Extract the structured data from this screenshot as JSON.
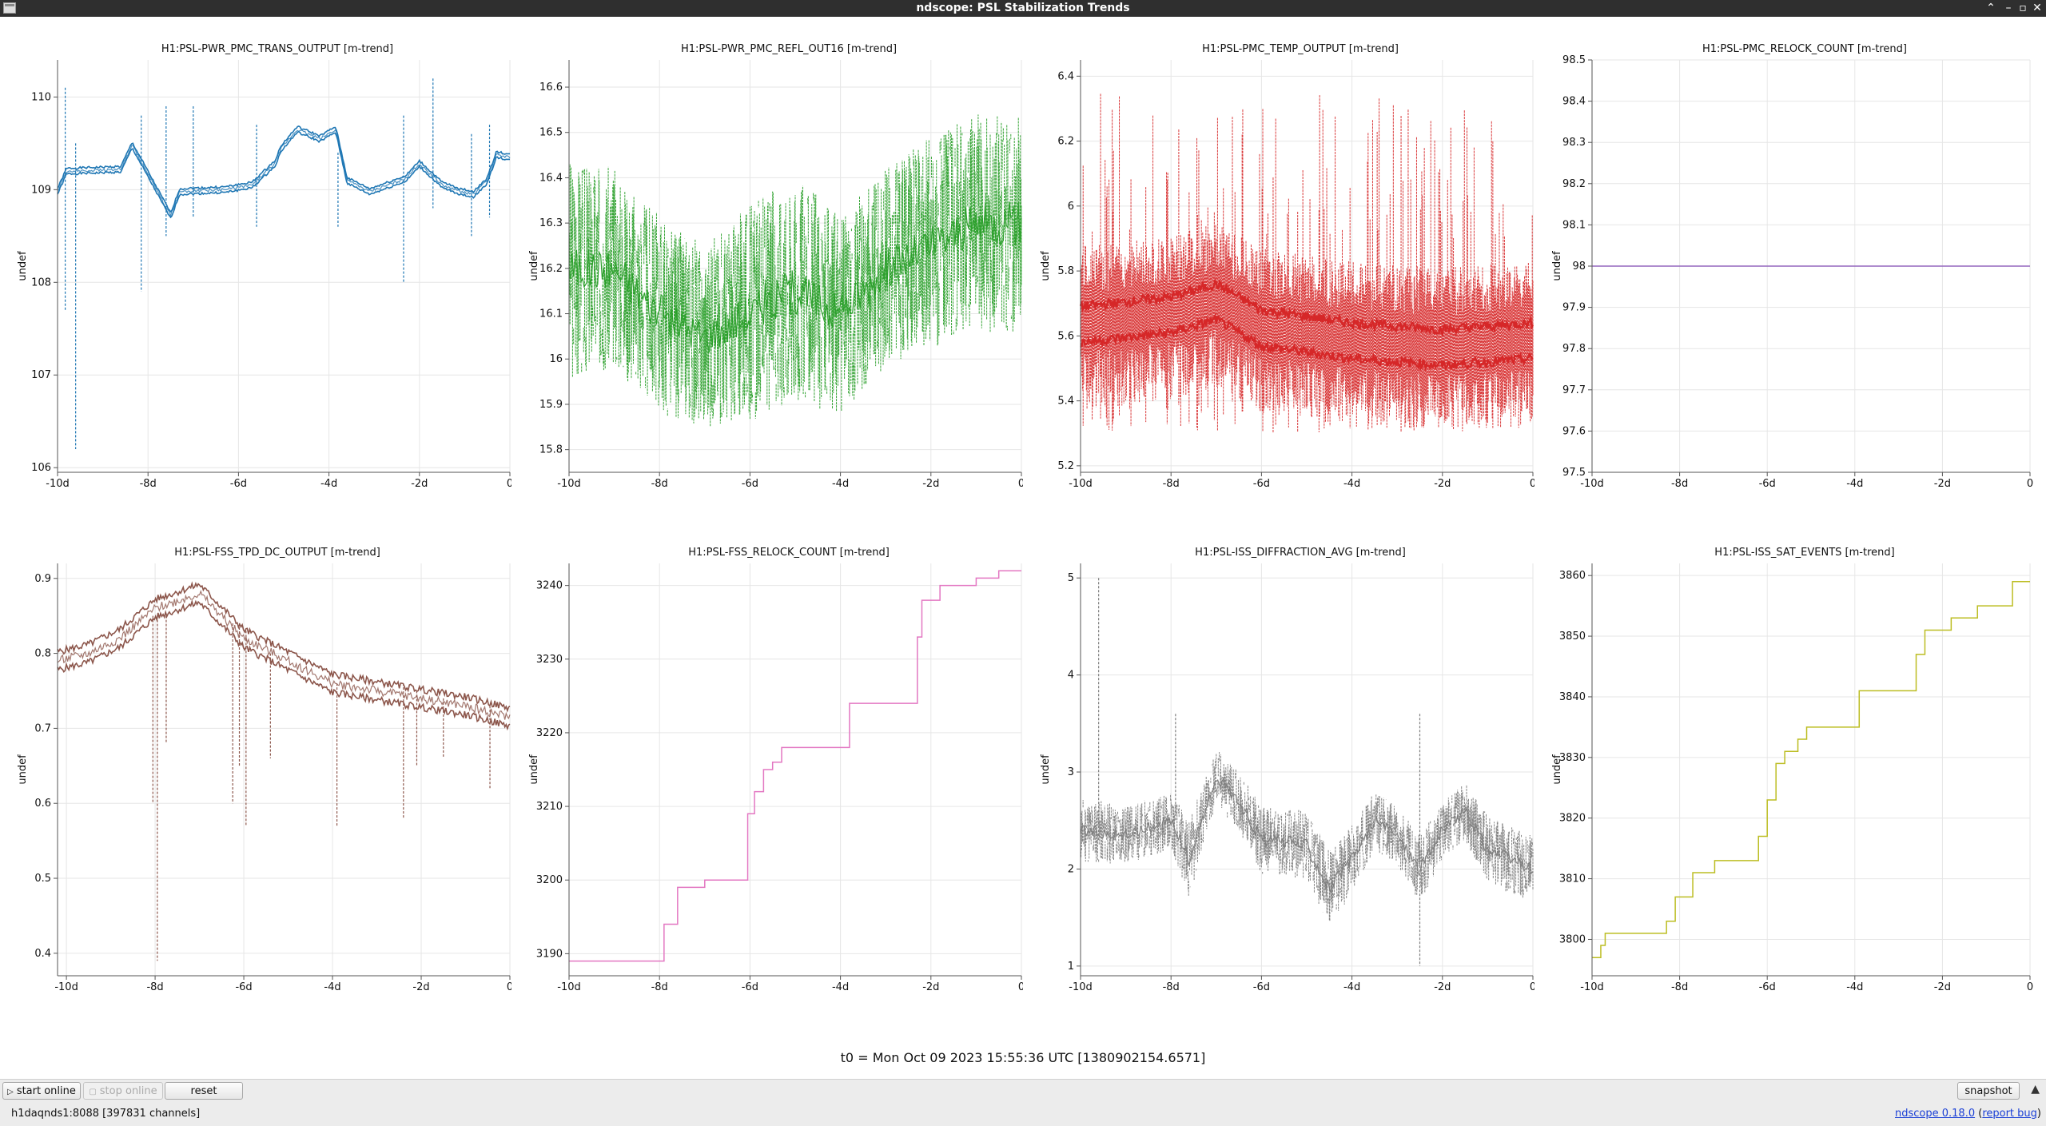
{
  "window": {
    "title": "ndscope: PSL Stabilization Trends"
  },
  "t0_label": "t0 = Mon Oct 09 2023 15:55:36 UTC [1380902154.6571]",
  "buttons": {
    "start_online": "start online",
    "stop_online": "stop online",
    "reset": "reset",
    "snapshot": "snapshot"
  },
  "status": {
    "server": "h1daqnds1:8088  [397831 channels]",
    "version": "ndscope 0.18.0",
    "report_bug": "report bug"
  },
  "chart_data": [
    {
      "type": "line",
      "title": "H1:PSL-PWR_PMC_TRANS_OUTPUT [m-trend]",
      "ylabel": "undef",
      "color": "#1f77b4",
      "xlim": [
        -10,
        0
      ],
      "ylim": [
        105.95,
        110.4
      ],
      "yticks": [
        106,
        107,
        108,
        109,
        110
      ],
      "yticklabels": [
        "106",
        "107",
        "108",
        "109",
        "110"
      ],
      "xticks": [
        -10,
        -8,
        -6,
        -4,
        -2,
        0
      ],
      "xticklabels": [
        "-10d",
        "-8d",
        "-6d",
        "-4d",
        "-2d",
        "0"
      ],
      "style": "steps",
      "band": 0.03,
      "x": [
        -10,
        -9.8,
        -8.6,
        -8.35,
        -7.5,
        -7.3,
        -6.3,
        -5.7,
        -5.2,
        -5.05,
        -4.7,
        -4.2,
        -3.85,
        -3.6,
        -3.1,
        -2.3,
        -2.0,
        -1.5,
        -1.1,
        -0.8,
        -0.5,
        -0.3,
        0
      ],
      "y": [
        108.98,
        109.2,
        109.22,
        109.48,
        108.72,
        108.98,
        109.0,
        109.05,
        109.28,
        109.45,
        109.65,
        109.55,
        109.65,
        109.1,
        108.98,
        109.12,
        109.28,
        109.05,
        108.98,
        108.95,
        109.1,
        109.38,
        109.35
      ],
      "spikes": [
        [
          -9.83,
          110.1,
          107.7
        ],
        [
          -9.6,
          109.5,
          106.2
        ],
        [
          -8.15,
          109.8,
          107.9
        ],
        [
          -7.6,
          109.9,
          108.5
        ],
        [
          -7.0,
          109.9,
          108.7
        ],
        [
          -5.6,
          109.7,
          108.6
        ],
        [
          -3.8,
          109.4,
          108.6
        ],
        [
          -2.35,
          109.8,
          108.0
        ],
        [
          -1.7,
          110.2,
          108.8
        ],
        [
          -0.85,
          109.6,
          108.5
        ],
        [
          -0.45,
          109.7,
          108.7
        ]
      ]
    },
    {
      "type": "line",
      "title": "H1:PSL-PWR_PMC_REFL_OUT16 [m-trend]",
      "ylabel": "undef",
      "color": "#2ca02c",
      "xlim": [
        -10,
        0
      ],
      "ylim": [
        15.75,
        16.66
      ],
      "yticks": [
        15.8,
        15.9,
        16,
        16.1,
        16.2,
        16.3,
        16.4,
        16.5,
        16.6
      ],
      "yticklabels": [
        "15.8",
        "15.9",
        "16",
        "16.1",
        "16.2",
        "16.3",
        "16.4",
        "16.5",
        "16.6"
      ],
      "xticks": [
        -10,
        -8,
        -6,
        -4,
        -2,
        0
      ],
      "xticklabels": [
        "-10d",
        "-8d",
        "-6d",
        "-4d",
        "-2d",
        "0"
      ],
      "style": "noise",
      "seed": 3,
      "x": [
        -10,
        -9,
        -8,
        -7,
        -6,
        -5,
        -4,
        -3,
        -2,
        -1,
        0
      ],
      "y": [
        16.2,
        16.2,
        16.1,
        16.05,
        16.1,
        16.15,
        16.1,
        16.2,
        16.25,
        16.3,
        16.3
      ],
      "amp": [
        0.25,
        0.22,
        0.22,
        0.2,
        0.24,
        0.25,
        0.22,
        0.22,
        0.24,
        0.24,
        0.24
      ]
    },
    {
      "type": "line",
      "title": "H1:PSL-PMC_TEMP_OUTPUT [m-trend]",
      "ylabel": "undef",
      "color": "#d62728",
      "xlim": [
        -10,
        0
      ],
      "ylim": [
        5.18,
        6.45
      ],
      "yticks": [
        5.2,
        5.4,
        5.6,
        5.8,
        6,
        6.2,
        6.4
      ],
      "yticklabels": [
        "5.2",
        "5.4",
        "5.6",
        "5.8",
        "6",
        "6.2",
        "6.4"
      ],
      "xticks": [
        -10,
        -8,
        -6,
        -4,
        -2,
        0
      ],
      "xticklabels": [
        "-10d",
        "-8d",
        "-6d",
        "-4d",
        "-2d",
        "0"
      ],
      "style": "temp",
      "seed": 7,
      "x": [
        -10,
        -8,
        -7,
        -6,
        -4,
        -2,
        0
      ],
      "y": [
        5.65,
        5.68,
        5.72,
        5.64,
        5.6,
        5.58,
        5.6
      ]
    },
    {
      "type": "line",
      "title": "H1:PSL-PMC_RELOCK_COUNT [m-trend]",
      "ylabel": "undef",
      "color": "#9467bd",
      "xlim": [
        -10,
        0
      ],
      "ylim": [
        97.5,
        98.5
      ],
      "yticks": [
        97.5,
        97.6,
        97.7,
        97.8,
        97.9,
        98,
        98.1,
        98.2,
        98.3,
        98.4,
        98.5
      ],
      "yticklabels": [
        "97.5",
        "97.6",
        "97.7",
        "97.8",
        "97.9",
        "98",
        "98.1",
        "98.2",
        "98.3",
        "98.4",
        "98.5"
      ],
      "xticks": [
        -10,
        -8,
        -6,
        -4,
        -2,
        0
      ],
      "xticklabels": [
        "-10d",
        "-8d",
        "-6d",
        "-4d",
        "-2d",
        "0"
      ],
      "style": "steps",
      "band": 0,
      "x": [
        -10,
        0
      ],
      "y": [
        98,
        98
      ]
    },
    {
      "type": "line",
      "title": "H1:PSL-FSS_TPD_DC_OUTPUT [m-trend]",
      "ylabel": "undef",
      "color": "#8c564b",
      "xlim": [
        -10.2,
        0
      ],
      "ylim": [
        0.37,
        0.92
      ],
      "yticks": [
        0.4,
        0.5,
        0.6,
        0.7,
        0.8,
        0.9
      ],
      "yticklabels": [
        "0.4",
        "0.5",
        "0.6",
        "0.7",
        "0.8",
        "0.9"
      ],
      "xticks": [
        -10,
        -8,
        -6,
        -4,
        -2,
        0
      ],
      "xticklabels": [
        "-10d",
        "-8d",
        "-6d",
        "-4d",
        "-2d",
        "0"
      ],
      "style": "steps",
      "band": 0.012,
      "x": [
        -10.2,
        -9.5,
        -8.8,
        -8.0,
        -7.0,
        -6.5,
        -6.0,
        -5.0,
        -4.0,
        -3.0,
        -2.0,
        -1.0,
        0
      ],
      "y": [
        0.79,
        0.8,
        0.82,
        0.86,
        0.88,
        0.85,
        0.82,
        0.79,
        0.76,
        0.75,
        0.74,
        0.73,
        0.715
      ],
      "spikes": [
        [
          -8.05,
          0.85,
          0.6
        ],
        [
          -7.95,
          0.85,
          0.39
        ],
        [
          -7.75,
          0.85,
          0.68
        ],
        [
          -6.25,
          0.84,
          0.6
        ],
        [
          -6.1,
          0.84,
          0.65
        ],
        [
          -5.95,
          0.83,
          0.57
        ],
        [
          -5.4,
          0.8,
          0.66
        ],
        [
          -3.9,
          0.76,
          0.57
        ],
        [
          -2.4,
          0.76,
          0.58
        ],
        [
          -2.1,
          0.75,
          0.65
        ],
        [
          -1.5,
          0.74,
          0.66
        ],
        [
          -0.45,
          0.73,
          0.62
        ]
      ]
    },
    {
      "type": "line",
      "title": "H1:PSL-FSS_RELOCK_COUNT [m-trend]",
      "ylabel": "undef",
      "color": "#e377c2",
      "xlim": [
        -10,
        0
      ],
      "ylim": [
        3187,
        3243
      ],
      "yticks": [
        3190,
        3200,
        3210,
        3220,
        3230,
        3240
      ],
      "yticklabels": [
        "3190",
        "3200",
        "3210",
        "3220",
        "3230",
        "3240"
      ],
      "xticks": [
        -10,
        -8,
        -6,
        -4,
        -2,
        0
      ],
      "xticklabels": [
        "-10d",
        "-8d",
        "-6d",
        "-4d",
        "-2d",
        "0"
      ],
      "style": "steps",
      "band": 0,
      "x": [
        -10,
        -8.1,
        -7.9,
        -7.6,
        -7.0,
        -6.1,
        -6.05,
        -5.9,
        -5.7,
        -5.5,
        -5.3,
        -4.0,
        -3.8,
        -2.4,
        -2.3,
        -2.2,
        -1.8,
        -1.0,
        -0.5,
        0
      ],
      "y": [
        3189,
        3189,
        3194,
        3199,
        3200,
        3200,
        3209,
        3212,
        3215,
        3216,
        3218,
        3218,
        3224,
        3224,
        3233,
        3238,
        3240,
        3241,
        3242,
        3242
      ]
    },
    {
      "type": "line",
      "title": "H1:PSL-ISS_DIFFRACTION_AVG [m-trend]",
      "ylabel": "undef",
      "color": "#7f7f7f",
      "xlim": [
        -10,
        0
      ],
      "ylim": [
        0.9,
        5.15
      ],
      "yticks": [
        1,
        2,
        3,
        4,
        5
      ],
      "yticklabels": [
        "1",
        "2",
        "3",
        "4",
        "5"
      ],
      "xticks": [
        -10,
        -8,
        -6,
        -4,
        -2,
        0
      ],
      "xticklabels": [
        "-10d",
        "-8d",
        "-6d",
        "-4d",
        "-2d",
        "0"
      ],
      "style": "noise",
      "seed": 11,
      "x": [
        -10,
        -9,
        -8,
        -7.6,
        -7.0,
        -6.5,
        -6,
        -5,
        -4.5,
        -4,
        -3.5,
        -3,
        -2.5,
        -2,
        -1.5,
        -1,
        -0.5,
        0
      ],
      "y": [
        2.4,
        2.35,
        2.5,
        2.1,
        2.95,
        2.7,
        2.3,
        2.25,
        1.8,
        2.1,
        2.5,
        2.35,
        2.0,
        2.4,
        2.6,
        2.2,
        2.1,
        2.0
      ],
      "amp": [
        0.35,
        0.3,
        0.3,
        0.4,
        0.3,
        0.3,
        0.35,
        0.35,
        0.4,
        0.35,
        0.3,
        0.3,
        0.35,
        0.3,
        0.3,
        0.35,
        0.35,
        0.35
      ],
      "spikes": [
        [
          -9.6,
          5.0,
          2.3
        ],
        [
          -7.9,
          3.6,
          2.5
        ],
        [
          -2.5,
          3.6,
          1.0
        ]
      ]
    },
    {
      "type": "line",
      "title": "H1:PSL-ISS_SAT_EVENTS [m-trend]",
      "ylabel": "undef",
      "color": "#bcbd22",
      "xlim": [
        -10,
        0
      ],
      "ylim": [
        3794,
        3862
      ],
      "yticks": [
        3800,
        3810,
        3820,
        3830,
        3840,
        3850,
        3860
      ],
      "yticklabels": [
        "3800",
        "3810",
        "3820",
        "3830",
        "3840",
        "3850",
        "3860"
      ],
      "xticks": [
        -10,
        -8,
        -6,
        -4,
        -2,
        0
      ],
      "xticklabels": [
        "-10d",
        "-8d",
        "-6d",
        "-4d",
        "-2d",
        "0"
      ],
      "style": "steps",
      "band": 0,
      "x": [
        -10,
        -9.8,
        -9.7,
        -8.3,
        -8.1,
        -7.7,
        -7.2,
        -6.2,
        -6.0,
        -5.8,
        -5.6,
        -5.3,
        -5.1,
        -4.1,
        -3.9,
        -2.7,
        -2.6,
        -2.4,
        -1.8,
        -1.2,
        -0.9,
        -0.4,
        0
      ],
      "y": [
        3797,
        3799,
        3801,
        3803,
        3807,
        3811,
        3813,
        3817,
        3823,
        3829,
        3831,
        3833,
        3835,
        3835,
        3841,
        3841,
        3847,
        3851,
        3853,
        3855,
        3855,
        3859,
        3859
      ]
    }
  ]
}
